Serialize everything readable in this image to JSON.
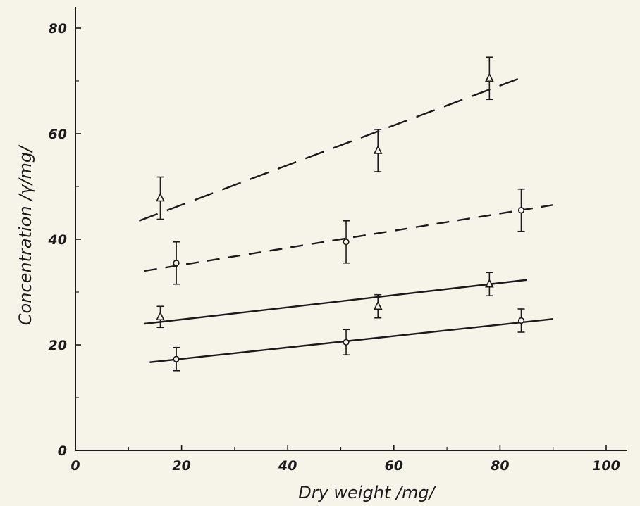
{
  "chart_data": {
    "type": "scatter",
    "xlabel": "Dry weight /mg/",
    "ylabel": "Concentration /γ/mg/",
    "xlim": [
      0,
      100
    ],
    "ylim": [
      0,
      80
    ],
    "x_ticks": [
      0,
      20,
      40,
      60,
      80,
      100
    ],
    "y_ticks": [
      0,
      20,
      40,
      60,
      80
    ],
    "x_tick_labels": [
      "0",
      "20",
      "40",
      "60",
      "80",
      "100"
    ],
    "y_tick_labels": [
      "0",
      "20",
      "40",
      "60",
      "80"
    ],
    "grid": false,
    "legend": "none",
    "series": [
      {
        "marker": "triangle",
        "line_style": "long-dash",
        "x": [
          16,
          57,
          78
        ],
        "y": [
          47.8,
          56.8,
          70.5
        ],
        "err": [
          4.0,
          4.0,
          4.0
        ],
        "fit": {
          "x": [
            12,
            85
          ],
          "y": [
            43.5,
            71.0
          ]
        }
      },
      {
        "marker": "circle",
        "line_style": "short-dash",
        "x": [
          19,
          51,
          84
        ],
        "y": [
          35.5,
          39.5,
          45.5
        ],
        "err": [
          4.0,
          4.0,
          4.0
        ],
        "fit": {
          "x": [
            13,
            90
          ],
          "y": [
            34.0,
            46.5
          ]
        }
      },
      {
        "marker": "triangle",
        "line_style": "solid",
        "x": [
          16,
          57,
          78
        ],
        "y": [
          25.3,
          27.3,
          31.5
        ],
        "err": [
          2.0,
          2.2,
          2.2
        ],
        "fit": {
          "x": [
            13,
            85
          ],
          "y": [
            24.0,
            32.3
          ]
        }
      },
      {
        "marker": "circle",
        "line_style": "solid",
        "x": [
          19,
          51,
          84
        ],
        "y": [
          17.3,
          20.5,
          24.6
        ],
        "err": [
          2.2,
          2.4,
          2.2
        ],
        "fit": {
          "x": [
            14,
            90
          ],
          "y": [
            16.7,
            24.9
          ]
        }
      }
    ]
  }
}
